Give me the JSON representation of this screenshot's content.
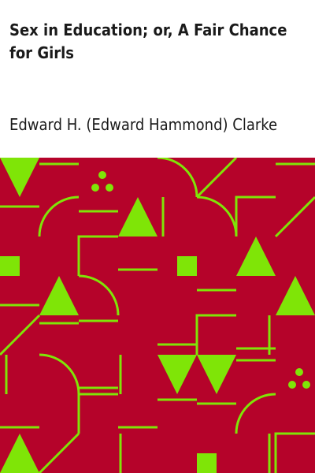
{
  "book": {
    "title": "Sex in Education; or, A Fair Chance for Girls",
    "author": "Edward H. (Edward Hammond) Clarke"
  },
  "cover_art": {
    "background_color": "#b5032a",
    "pattern_color": "#7fe507",
    "motifs": [
      "triangle",
      "square",
      "three-dots",
      "arc",
      "line"
    ]
  }
}
